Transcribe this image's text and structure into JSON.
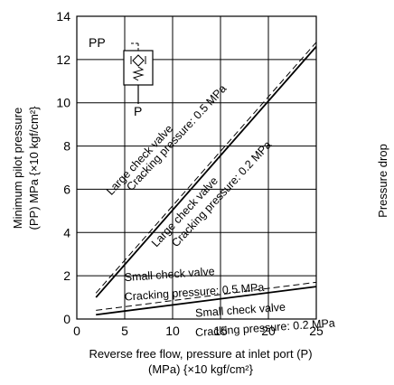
{
  "chart_data": {
    "type": "line",
    "xlabel_line1": "Reverse free flow, pressure at inlet port (P)",
    "xlabel_line2": "(MPa) {×10 kgf/cm²}",
    "ylabel_line1": "Minimum pilot pressure",
    "ylabel_line2": "(PP) MPa {×10 kgf/cm²}",
    "right_label": "Pressure drop",
    "xlim": [
      0,
      25
    ],
    "ylim": [
      0,
      14
    ],
    "x_ticks": [
      0,
      5,
      10,
      15,
      20,
      25
    ],
    "y_ticks": [
      0,
      2,
      4,
      6,
      8,
      10,
      12,
      14
    ],
    "grid": true,
    "series": [
      {
        "x": [
          2,
          25
        ],
        "y": [
          1.0,
          12.6
        ],
        "style": "solid"
      },
      {
        "x": [
          2,
          25
        ],
        "y": [
          1.2,
          12.8
        ],
        "style": "dashed"
      },
      {
        "x": [
          2,
          25
        ],
        "y": [
          0.2,
          1.5
        ],
        "style": "solid"
      },
      {
        "x": [
          2,
          25
        ],
        "y": [
          0.4,
          1.7
        ],
        "style": "dashed"
      }
    ],
    "annotations": [
      {
        "id": "large05a",
        "text": "Large check valve",
        "x": 3.6,
        "y": 5.7,
        "angle": -47
      },
      {
        "id": "large05b",
        "text": "Cracking pressure: 0.5 MPa",
        "x": 5.7,
        "y": 5.9,
        "angle": -47
      },
      {
        "id": "large02a",
        "text": "Large check valve",
        "x": 8.3,
        "y": 3.3,
        "angle": -47
      },
      {
        "id": "large02b",
        "text": "Cracking pressure: 0.2 MPa",
        "x": 10.4,
        "y": 3.3,
        "angle": -47
      },
      {
        "id": "small05a",
        "text": "Small check valve",
        "x": 5.0,
        "y": 1.75,
        "angle": -4
      },
      {
        "id": "small05b",
        "text": "Cracking pressure: 0.5 MPa",
        "x": 5.0,
        "y": 0.85,
        "angle": -4
      },
      {
        "id": "small02a",
        "text": "Small check valve",
        "x": 12.4,
        "y": 0.1,
        "angle": -4
      },
      {
        "id": "small02b",
        "text": "Cracking pressure: 0.2 MPa",
        "x": 12.4,
        "y": -0.8,
        "angle": -4
      }
    ],
    "symbol_labels": {
      "pilot": "PP",
      "inlet": "P"
    }
  }
}
